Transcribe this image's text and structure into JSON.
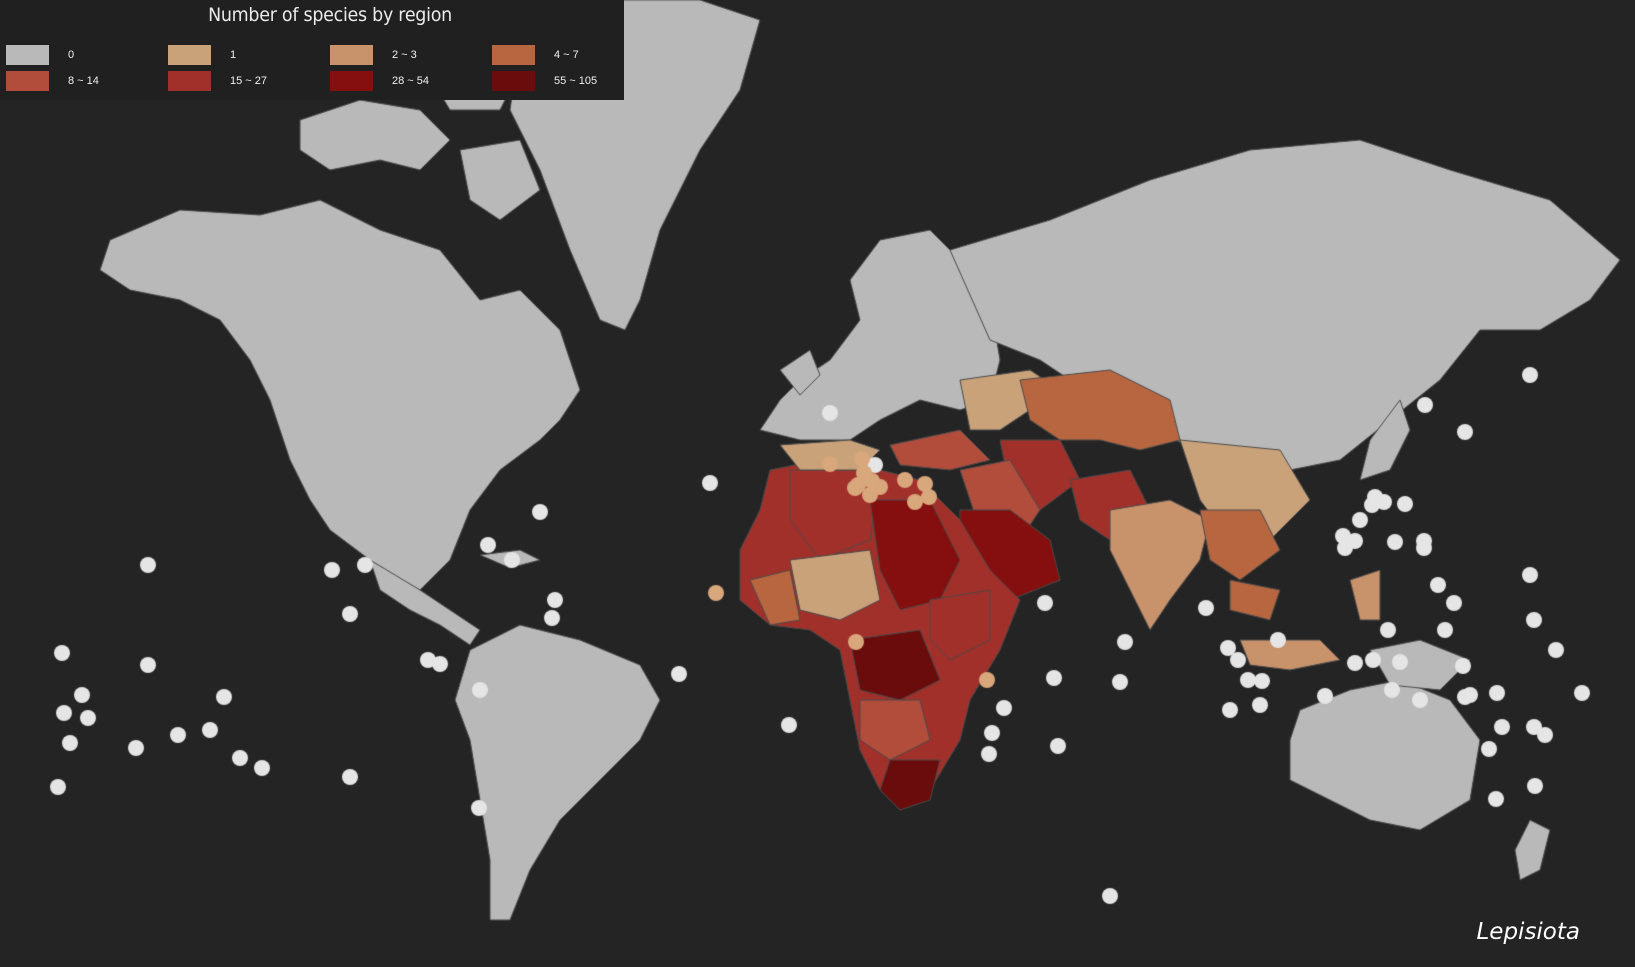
{
  "legend": {
    "title": "Number of species by region",
    "classes": [
      {
        "label": "0",
        "color": "#b9b9b9"
      },
      {
        "label": "1",
        "color": "#c9a27a"
      },
      {
        "label": "2 ~ 3",
        "color": "#c8926a"
      },
      {
        "label": "4 ~ 7",
        "color": "#b8663f"
      },
      {
        "label": "8 ~ 14",
        "color": "#b24d3c"
      },
      {
        "label": "15 ~ 27",
        "color": "#a2302a"
      },
      {
        "label": "28 ~ 54",
        "color": "#850f0f"
      },
      {
        "label": "55 ~ 105",
        "color": "#6a0c0c"
      }
    ]
  },
  "genus": "Lepisiota",
  "colors": {
    "background": "#242424",
    "ocean": "#242424",
    "border": "#4a4a4a",
    "zero": "#b9b9b9"
  }
}
